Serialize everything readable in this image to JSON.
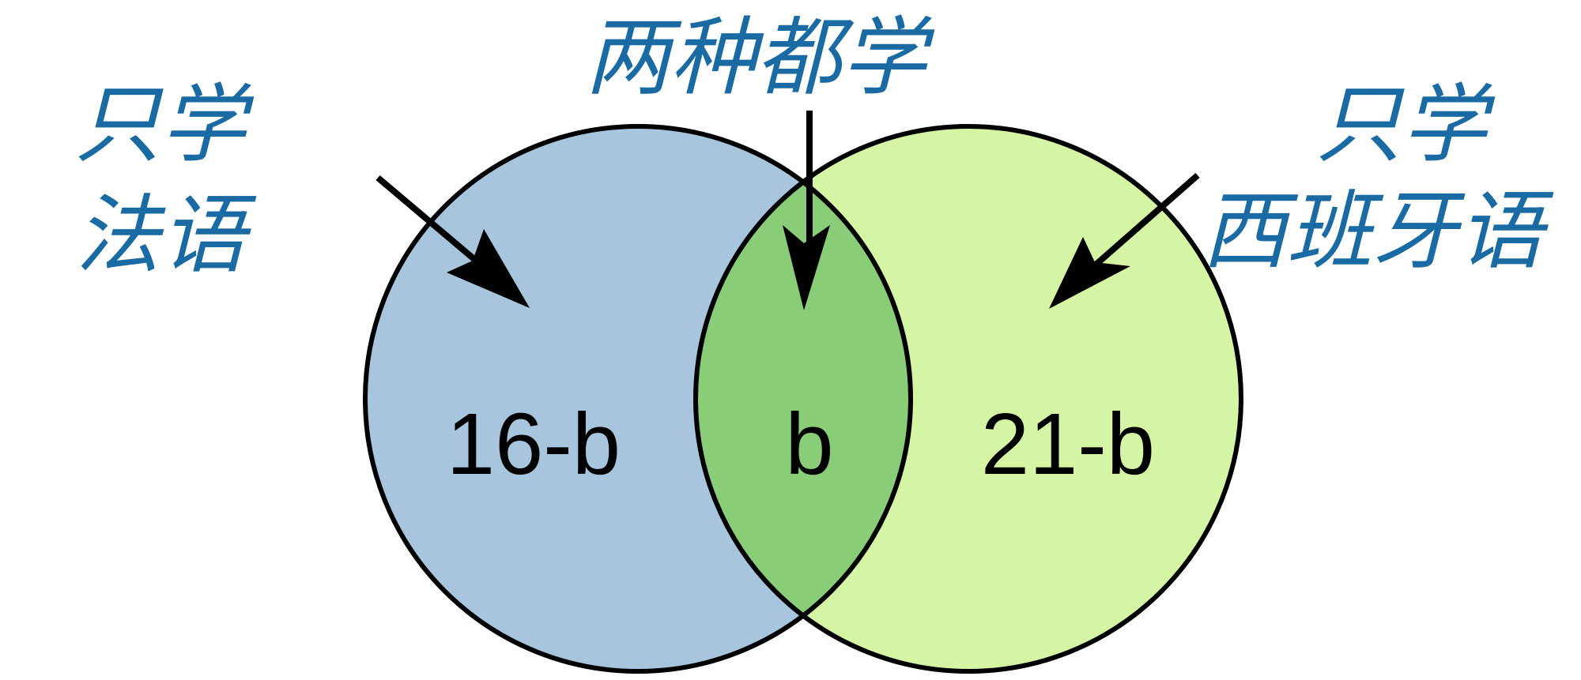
{
  "labels": {
    "french_only": [
      "只学",
      "法语"
    ],
    "both": "两种都学",
    "spanish_only": [
      "只学",
      "西班牙语"
    ]
  },
  "regions": {
    "french_only": "16-b",
    "intersection": "b",
    "spanish_only": "21-b"
  },
  "colors": {
    "left_circle": "#a7c5dc",
    "right_circle": "#d5f5a5",
    "intersection": "#89cd78",
    "label_text": "#1a6aa3",
    "outline": "#000000"
  }
}
